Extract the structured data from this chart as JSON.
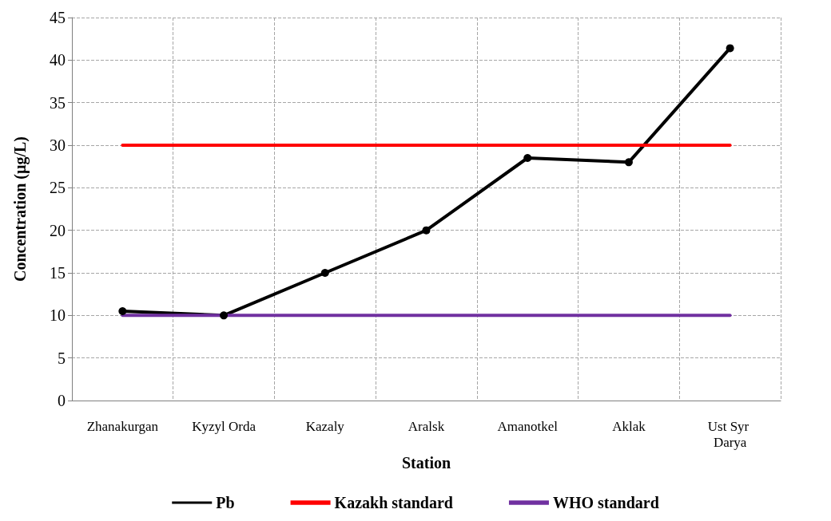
{
  "chart_data": {
    "type": "line",
    "xlabel": "Station",
    "ylabel": "Concentration (µg/L)",
    "categories": [
      "Zhanakurgan",
      "Kyzyl Orda",
      "Kazaly",
      "Aralsk",
      "Amanotkel",
      "Aklak",
      "Ust Syr Darya"
    ],
    "series": [
      {
        "name": "Pb",
        "color": "#000000",
        "marker": "circle",
        "values": [
          10.5,
          10,
          15,
          20,
          28.5,
          28,
          41.4
        ]
      },
      {
        "name": "Kazakh standard",
        "color": "#ff0000",
        "marker": "none",
        "values": [
          30,
          30,
          30,
          30,
          30,
          30,
          30
        ]
      },
      {
        "name": "WHO standard",
        "color": "#7030a0",
        "marker": "none",
        "values": [
          10,
          10,
          10,
          10,
          10,
          10,
          10
        ]
      }
    ],
    "ylim": [
      0,
      45
    ],
    "yticks": [
      0,
      5,
      10,
      15,
      20,
      25,
      30,
      35,
      40,
      45
    ],
    "grid": true,
    "legend": "bottom",
    "line_style": "solid"
  }
}
